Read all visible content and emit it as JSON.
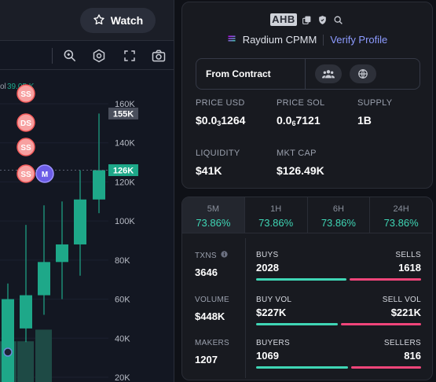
{
  "header": {
    "watch_label": "Watch"
  },
  "chart": {
    "price_axis": [
      "160K",
      "140K",
      "120K",
      "100K",
      "80K",
      "60K",
      "40K",
      "20K"
    ],
    "current_price_tag": "126K",
    "high_price_tag": "155K",
    "legend_fragment": "ol",
    "legend_value": "39.05 K",
    "markers": [
      "SS",
      "DS",
      "SS",
      "SS",
      "M"
    ],
    "colors": {
      "up": "#1ea889",
      "down": "#ef5350",
      "marker_pink": "#f7a1a1",
      "marker_purple": "#6c5ce7"
    }
  },
  "chart_data": {
    "type": "candlestick",
    "ylim": [
      0,
      170000
    ],
    "y_ticks": [
      160000,
      140000,
      120000,
      100000,
      80000,
      60000,
      40000,
      20000
    ],
    "candles": [
      {
        "open": 0,
        "close": 60000,
        "high": 68000,
        "low": 0
      },
      {
        "open": 45000,
        "close": 62000,
        "high": 98000,
        "low": 38000
      },
      {
        "open": 62000,
        "close": 79000,
        "high": 108000,
        "low": 52000
      },
      {
        "open": 79000,
        "close": 88000,
        "high": 110000,
        "low": 60000
      },
      {
        "open": 88000,
        "close": 111000,
        "high": 126000,
        "low": 72000
      },
      {
        "open": 111000,
        "close": 126000,
        "high": 155000,
        "low": 104000
      }
    ],
    "volume": [
      14000,
      14000,
      18000
    ],
    "current_price": 126000,
    "high_price": 155000
  },
  "token": {
    "ticker": "AHB",
    "dex": "Raydium CPMM",
    "verify_label": "Verify Profile",
    "from_contract": "From Contract",
    "metrics": {
      "price_usd_label": "PRICE USD",
      "price_usd_prefix": "$0.0",
      "price_usd_zeros": "3",
      "price_usd_digits": "1264",
      "price_sol_label": "PRICE SOL",
      "price_sol_prefix": "0.0",
      "price_sol_zeros": "6",
      "price_sol_digits": "7121",
      "supply_label": "SUPPLY",
      "supply_value": "1B",
      "liquidity_label": "LIQUIDITY",
      "liquidity_value": "$41K",
      "mktcap_label": "MKT CAP",
      "mktcap_value": "$126.49K"
    }
  },
  "stats": {
    "tabs": [
      {
        "label": "5M",
        "value": "73.86%"
      },
      {
        "label": "1H",
        "value": "73.86%"
      },
      {
        "label": "6H",
        "value": "73.86%"
      },
      {
        "label": "24H",
        "value": "73.86%"
      }
    ],
    "active_tab": 0,
    "rows": [
      {
        "label": "TXNS",
        "value": "3646",
        "left_label": "BUYS",
        "left_value": "2028",
        "right_label": "SELLS",
        "right_value": "1618",
        "buy_fraction": 0.556
      },
      {
        "label": "VOLUME",
        "value": "$448K",
        "left_label": "BUY VOL",
        "left_value": "$227K",
        "right_label": "SELL VOL",
        "right_value": "$221K",
        "buy_fraction": 0.507
      },
      {
        "label": "MAKERS",
        "value": "1207",
        "left_label": "BUYERS",
        "left_value": "1069",
        "right_label": "SELLERS",
        "right_value": "816",
        "buy_fraction": 0.567
      }
    ],
    "colors": {
      "positive": "#3fd6b5",
      "negative": "#f0457a"
    }
  }
}
